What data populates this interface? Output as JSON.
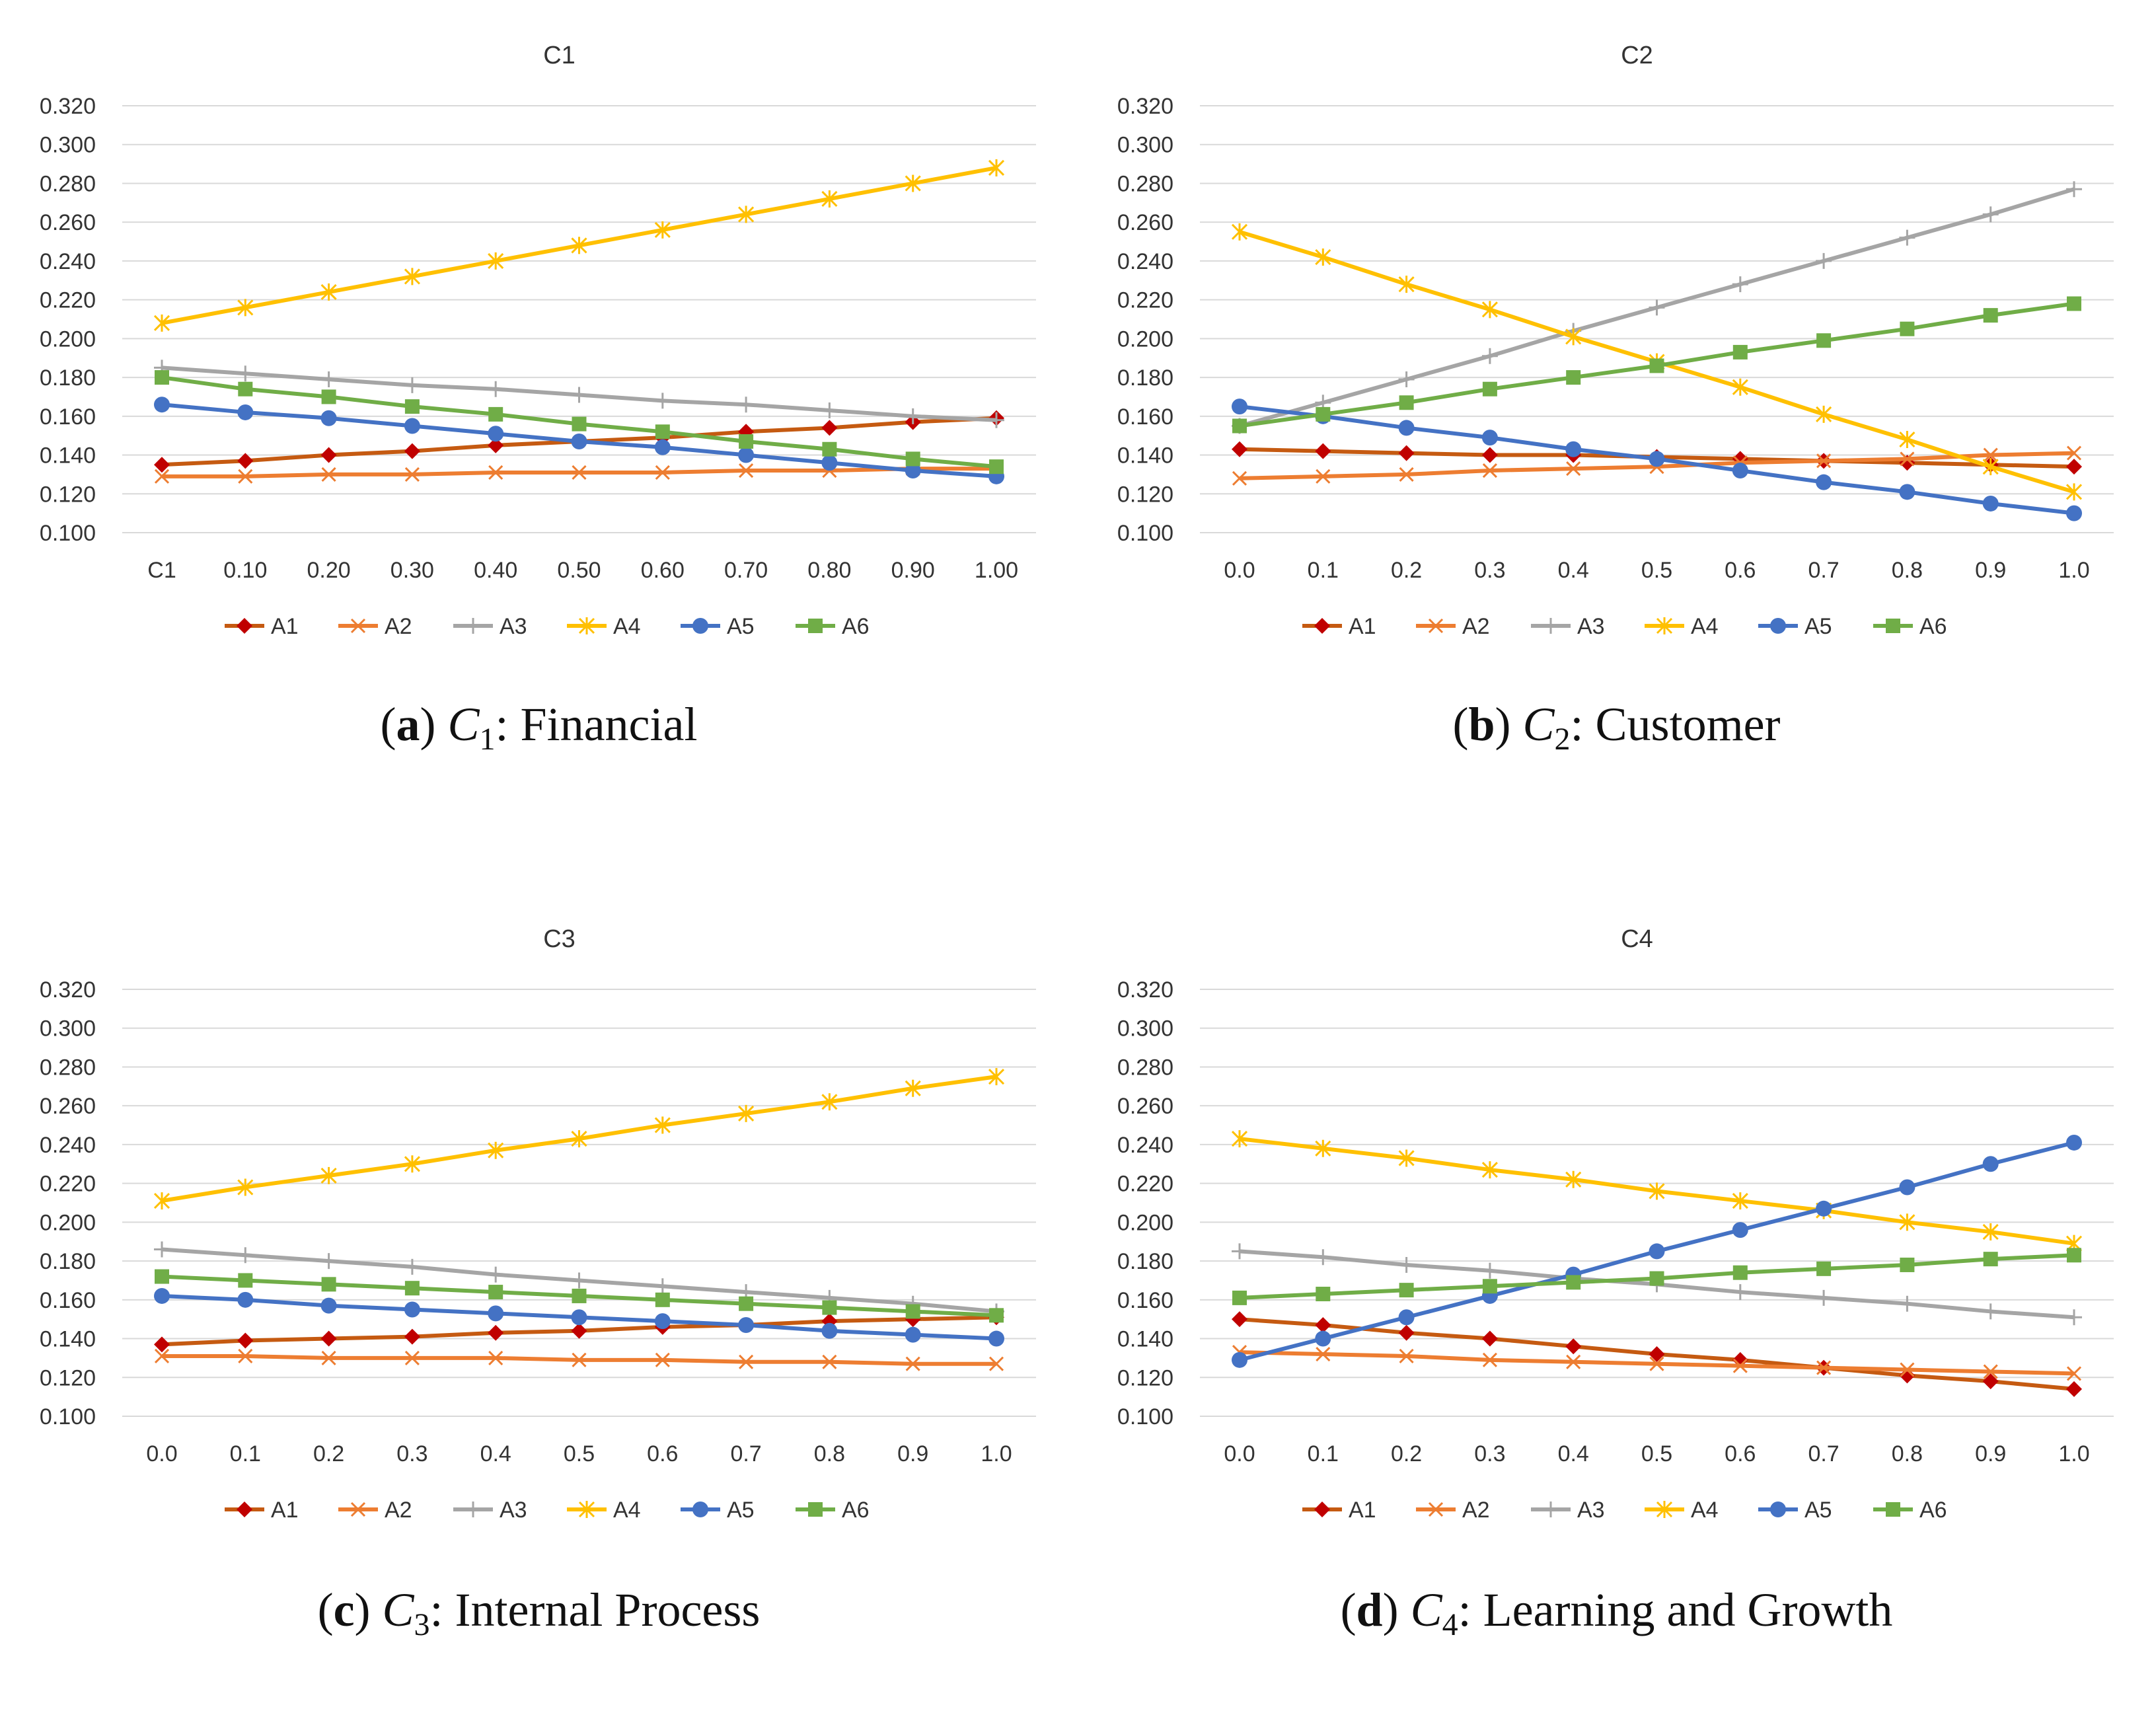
{
  "series_styles": [
    {
      "name": "A1",
      "color": "#C00000",
      "line": "#C55A11",
      "marker": "diamond"
    },
    {
      "name": "A2",
      "color": "#ED7D31",
      "line": "#ED7D31",
      "marker": "x"
    },
    {
      "name": "A3",
      "color": "#A5A5A5",
      "line": "#A5A5A5",
      "marker": "plus"
    },
    {
      "name": "A4",
      "color": "#FFC000",
      "line": "#FFC000",
      "marker": "star"
    },
    {
      "name": "A5",
      "color": "#4472C4",
      "line": "#4472C4",
      "marker": "circle"
    },
    {
      "name": "A6",
      "color": "#70AD47",
      "line": "#70AD47",
      "marker": "square"
    }
  ],
  "chart_data": [
    {
      "type": "line",
      "title": "C1",
      "caption": {
        "letter": "a",
        "c": "C",
        "sub": "1",
        "text": ": Financial"
      },
      "categories": [
        "C1",
        "0.10",
        "0.20",
        "0.30",
        "0.40",
        "0.50",
        "0.60",
        "0.70",
        "0.80",
        "0.90",
        "1.00"
      ],
      "yticks": [
        "0.100",
        "0.120",
        "0.140",
        "0.160",
        "0.180",
        "0.200",
        "0.220",
        "0.240",
        "0.260",
        "0.280",
        "0.300",
        "0.320"
      ],
      "ylim": [
        0.1,
        0.32
      ],
      "grid": true,
      "legend": "bottom",
      "series": [
        {
          "name": "A1",
          "values": [
            0.135,
            0.137,
            0.14,
            0.142,
            0.145,
            0.147,
            0.149,
            0.152,
            0.154,
            0.157,
            0.159
          ]
        },
        {
          "name": "A2",
          "values": [
            0.129,
            0.129,
            0.13,
            0.13,
            0.131,
            0.131,
            0.131,
            0.132,
            0.132,
            0.133,
            0.133
          ]
        },
        {
          "name": "A3",
          "values": [
            0.185,
            0.182,
            0.179,
            0.176,
            0.174,
            0.171,
            0.168,
            0.166,
            0.163,
            0.16,
            0.158
          ]
        },
        {
          "name": "A4",
          "values": [
            0.208,
            0.216,
            0.224,
            0.232,
            0.24,
            0.248,
            0.256,
            0.264,
            0.272,
            0.28,
            0.288
          ]
        },
        {
          "name": "A5",
          "values": [
            0.166,
            0.162,
            0.159,
            0.155,
            0.151,
            0.147,
            0.144,
            0.14,
            0.136,
            0.132,
            0.129
          ]
        },
        {
          "name": "A6",
          "values": [
            0.18,
            0.174,
            0.17,
            0.165,
            0.161,
            0.156,
            0.152,
            0.147,
            0.143,
            0.138,
            0.134
          ]
        }
      ]
    },
    {
      "type": "line",
      "title": "C2",
      "caption": {
        "letter": "b",
        "c": "C",
        "sub": "2",
        "text": ": Customer"
      },
      "categories": [
        "0.0",
        "0.1",
        "0.2",
        "0.3",
        "0.4",
        "0.5",
        "0.6",
        "0.7",
        "0.8",
        "0.9",
        "1.0"
      ],
      "yticks": [
        "0.100",
        "0.120",
        "0.140",
        "0.160",
        "0.180",
        "0.200",
        "0.220",
        "0.240",
        "0.260",
        "0.280",
        "0.300",
        "0.320"
      ],
      "ylim": [
        0.1,
        0.32
      ],
      "grid": true,
      "legend": "bottom",
      "series": [
        {
          "name": "A1",
          "values": [
            0.143,
            0.142,
            0.141,
            0.14,
            0.14,
            0.139,
            0.138,
            0.137,
            0.136,
            0.135,
            0.134
          ]
        },
        {
          "name": "A2",
          "values": [
            0.128,
            0.129,
            0.13,
            0.132,
            0.133,
            0.134,
            0.136,
            0.137,
            0.138,
            0.14,
            0.141
          ]
        },
        {
          "name": "A3",
          "values": [
            0.155,
            0.167,
            0.179,
            0.191,
            0.204,
            0.216,
            0.228,
            0.24,
            0.252,
            0.264,
            0.277
          ]
        },
        {
          "name": "A4",
          "values": [
            0.255,
            0.242,
            0.228,
            0.215,
            0.201,
            0.188,
            0.175,
            0.161,
            0.148,
            0.134,
            0.121
          ]
        },
        {
          "name": "A5",
          "values": [
            0.165,
            0.16,
            0.154,
            0.149,
            0.143,
            0.138,
            0.132,
            0.126,
            0.121,
            0.115,
            0.11
          ]
        },
        {
          "name": "A6",
          "values": [
            0.155,
            0.161,
            0.167,
            0.174,
            0.18,
            0.186,
            0.193,
            0.199,
            0.205,
            0.212,
            0.218
          ]
        }
      ]
    },
    {
      "type": "line",
      "title": "C3",
      "caption": {
        "letter": "c",
        "c": "C",
        "sub": "3",
        "text": ": Internal Process"
      },
      "categories": [
        "0.0",
        "0.1",
        "0.2",
        "0.3",
        "0.4",
        "0.5",
        "0.6",
        "0.7",
        "0.8",
        "0.9",
        "1.0"
      ],
      "yticks": [
        "0.100",
        "0.120",
        "0.140",
        "0.160",
        "0.180",
        "0.200",
        "0.220",
        "0.240",
        "0.260",
        "0.280",
        "0.300",
        "0.320"
      ],
      "ylim": [
        0.1,
        0.32
      ],
      "grid": true,
      "legend": "bottom",
      "series": [
        {
          "name": "A1",
          "values": [
            0.137,
            0.139,
            0.14,
            0.141,
            0.143,
            0.144,
            0.146,
            0.147,
            0.149,
            0.15,
            0.151
          ]
        },
        {
          "name": "A2",
          "values": [
            0.131,
            0.131,
            0.13,
            0.13,
            0.13,
            0.129,
            0.129,
            0.128,
            0.128,
            0.127,
            0.127
          ]
        },
        {
          "name": "A3",
          "values": [
            0.186,
            0.183,
            0.18,
            0.177,
            0.173,
            0.17,
            0.167,
            0.164,
            0.161,
            0.158,
            0.154
          ]
        },
        {
          "name": "A4",
          "values": [
            0.211,
            0.218,
            0.224,
            0.23,
            0.237,
            0.243,
            0.25,
            0.256,
            0.262,
            0.269,
            0.275
          ]
        },
        {
          "name": "A5",
          "values": [
            0.162,
            0.16,
            0.157,
            0.155,
            0.153,
            0.151,
            0.149,
            0.147,
            0.144,
            0.142,
            0.14
          ]
        },
        {
          "name": "A6",
          "values": [
            0.172,
            0.17,
            0.168,
            0.166,
            0.164,
            0.162,
            0.16,
            0.158,
            0.156,
            0.154,
            0.152
          ]
        }
      ]
    },
    {
      "type": "line",
      "title": "C4",
      "caption": {
        "letter": "d",
        "c": "C",
        "sub": "4",
        "text": ": Learning and Growth"
      },
      "categories": [
        "0.0",
        "0.1",
        "0.2",
        "0.3",
        "0.4",
        "0.5",
        "0.6",
        "0.7",
        "0.8",
        "0.9",
        "1.0"
      ],
      "yticks": [
        "0.100",
        "0.120",
        "0.140",
        "0.160",
        "0.180",
        "0.200",
        "0.220",
        "0.240",
        "0.260",
        "0.280",
        "0.300",
        "0.320"
      ],
      "ylim": [
        0.1,
        0.32
      ],
      "grid": true,
      "legend": "bottom",
      "series": [
        {
          "name": "A1",
          "values": [
            0.15,
            0.147,
            0.143,
            0.14,
            0.136,
            0.132,
            0.129,
            0.125,
            0.121,
            0.118,
            0.114
          ]
        },
        {
          "name": "A2",
          "values": [
            0.133,
            0.132,
            0.131,
            0.129,
            0.128,
            0.127,
            0.126,
            0.125,
            0.124,
            0.123,
            0.122
          ]
        },
        {
          "name": "A3",
          "values": [
            0.185,
            0.182,
            0.178,
            0.175,
            0.171,
            0.168,
            0.164,
            0.161,
            0.158,
            0.154,
            0.151
          ]
        },
        {
          "name": "A4",
          "values": [
            0.243,
            0.238,
            0.233,
            0.227,
            0.222,
            0.216,
            0.211,
            0.206,
            0.2,
            0.195,
            0.189
          ]
        },
        {
          "name": "A5",
          "values": [
            0.129,
            0.14,
            0.151,
            0.162,
            0.173,
            0.185,
            0.196,
            0.207,
            0.218,
            0.23,
            0.241
          ]
        },
        {
          "name": "A6",
          "values": [
            0.161,
            0.163,
            0.165,
            0.167,
            0.169,
            0.171,
            0.174,
            0.176,
            0.178,
            0.181,
            0.183
          ]
        }
      ]
    }
  ]
}
